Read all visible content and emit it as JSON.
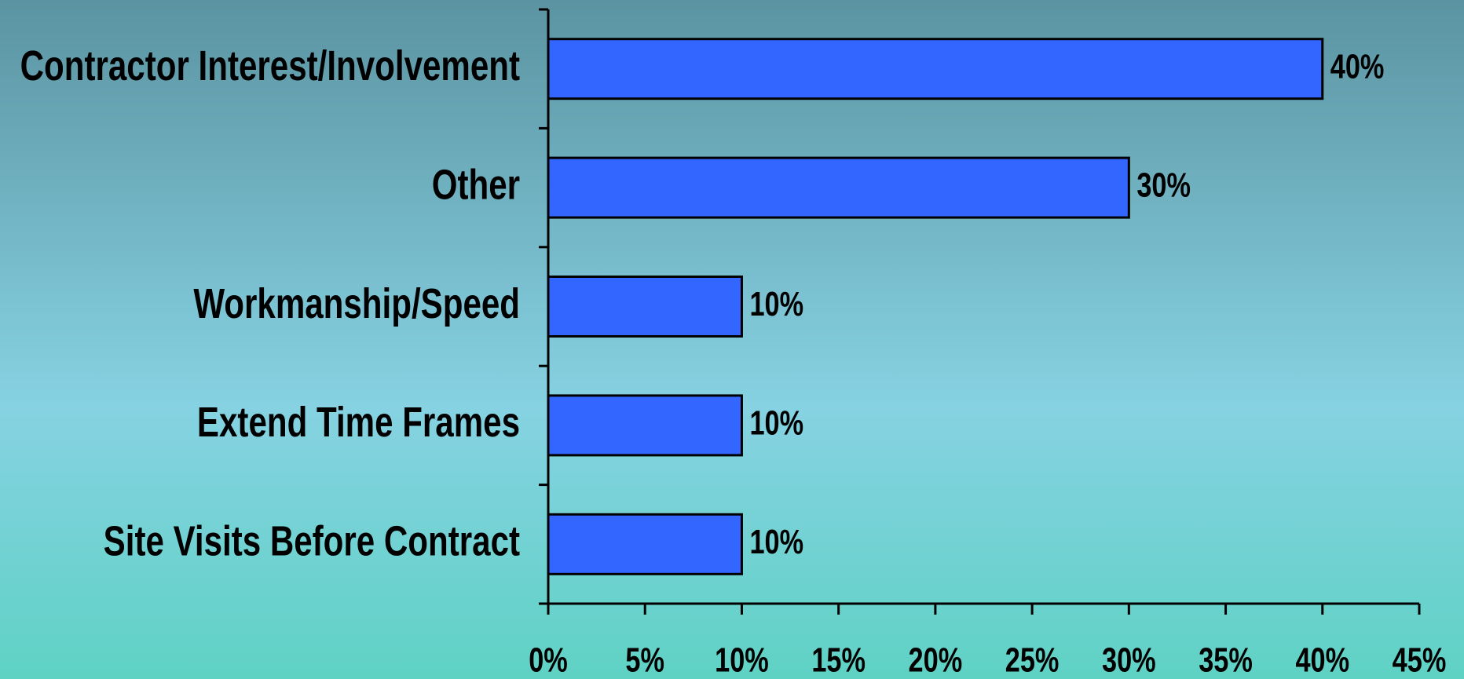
{
  "chart_data": {
    "type": "barh",
    "categories": [
      "Contractor Interest/Involvement",
      "Other",
      "Workmanship/Speed",
      "Extend Time Frames",
      "Site Visits Before Contract"
    ],
    "values": [
      40,
      30,
      10,
      10,
      10
    ],
    "value_labels": [
      "40%",
      "30%",
      "10%",
      "10%",
      "10%"
    ],
    "color": "#3366ff",
    "xlim": [
      0,
      45
    ],
    "xticks": [
      {
        "value": 0,
        "label": "0%"
      },
      {
        "value": 5,
        "label": "5%"
      },
      {
        "value": 10,
        "label": "10%"
      },
      {
        "value": 15,
        "label": "15%"
      },
      {
        "value": 20,
        "label": "20%"
      },
      {
        "value": 25,
        "label": "25%"
      },
      {
        "value": 30,
        "label": "30%"
      },
      {
        "value": 35,
        "label": "35%"
      },
      {
        "value": 40,
        "label": "40%"
      },
      {
        "value": 45,
        "label": "45%"
      }
    ],
    "grid": false
  }
}
